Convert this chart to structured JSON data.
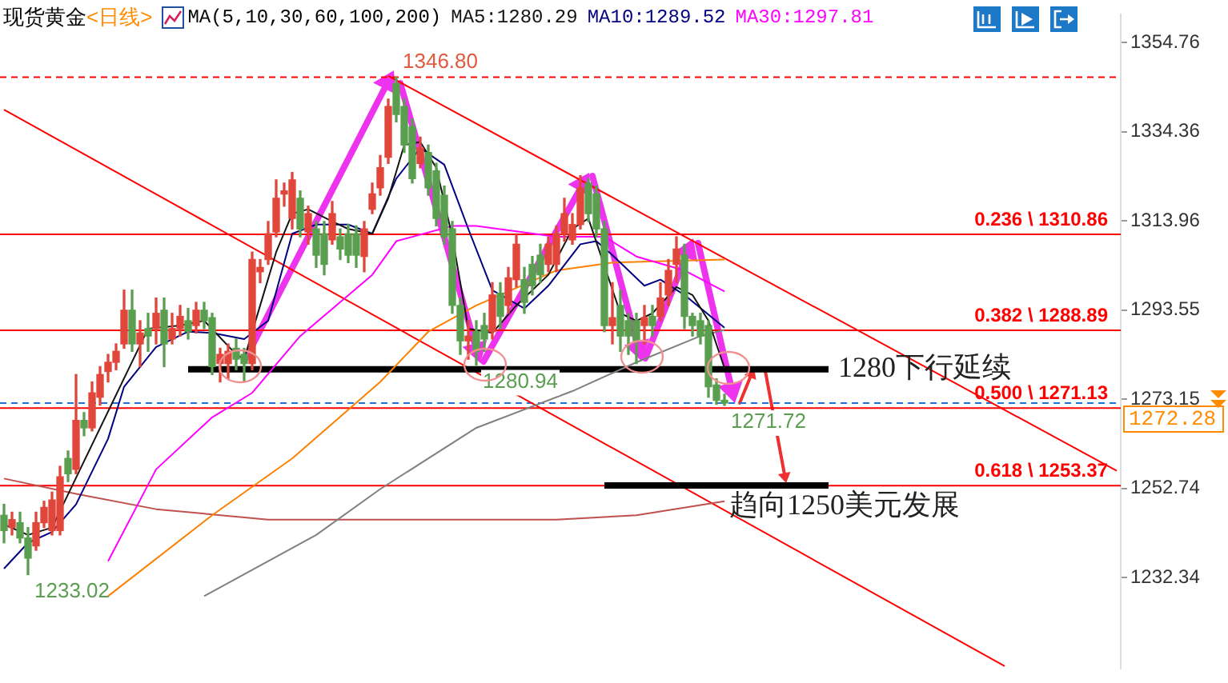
{
  "chart_data": {
    "type": "candlestick",
    "title": "现货黄金",
    "subtitle": "<日线>",
    "legend": "top",
    "tick_labels": "y",
    "annotations": [
      "MA(5,10,30,60,100,200)",
      {
        "text": "1346.80",
        "y": 1346.8
      },
      {
        "text": "1280.94",
        "y": 1280.94
      },
      "1233.02",
      {
        "text": "1271.72",
        "y": 1271.72
      }
    ],
    "categories": [
      null,
      null,
      null,
      null,
      null,
      null,
      null,
      null,
      null,
      null,
      null,
      null,
      null,
      null,
      null,
      null,
      null,
      null,
      null,
      null,
      null,
      null,
      null,
      null,
      null,
      null,
      null,
      null,
      null,
      null,
      null,
      null,
      null,
      null,
      null,
      null,
      null,
      null,
      null,
      null,
      null,
      null,
      null,
      null,
      null,
      null,
      null,
      null,
      null,
      null,
      null,
      null,
      null,
      null,
      null,
      null,
      null,
      null,
      null,
      null,
      null,
      null,
      null,
      null,
      null,
      null,
      null,
      null,
      null,
      null,
      null,
      null,
      null,
      null,
      null,
      null,
      null,
      null,
      null,
      null,
      null,
      null,
      null,
      null,
      null,
      null,
      null,
      null,
      null,
      null,
      null,
      null,
      null,
      null,
      null,
      null,
      null,
      null,
      null,
      null,
      null,
      null,
      null,
      null,
      null,
      null,
      null,
      null,
      null,
      null,
      null,
      null,
      null,
      null,
      null,
      null,
      null,
      null,
      null,
      null,
      null,
      null,
      null,
      null,
      null,
      null,
      null,
      null,
      null,
      null,
      null,
      null,
      null,
      null,
      null,
      null,
      null,
      null,
      null,
      null
    ],
    "ohlc": [
      [
        1246.6,
        1249.1,
        1240.3,
        1243.1
      ],
      [
        1243.8,
        1247.3,
        1242.1,
        1245.6
      ],
      [
        1244.9,
        1247.3,
        1240.3,
        1241.4
      ],
      [
        1241.4,
        1243.8,
        1233.02,
        1236.8
      ],
      [
        1239.6,
        1247.3,
        1238.6,
        1244.9
      ],
      [
        1244.9,
        1249.8,
        1243.8,
        1248.4
      ],
      [
        1243.1,
        1251.9,
        1242.1,
        1250.1
      ],
      [
        1243.1,
        1257.8,
        1242.1,
        1255.4
      ],
      [
        1259.6,
        1261.3,
        1254.3,
        1256.1
      ],
      [
        1257.1,
        1278.8,
        1256.1,
        1268.3
      ],
      [
        1268.3,
        1270.1,
        1264.8,
        1266.6
      ],
      [
        1266.6,
        1277.1,
        1265.9,
        1274.6
      ],
      [
        1273.6,
        1280.6,
        1271.8,
        1278.8
      ],
      [
        1279.5,
        1283.4,
        1277.1,
        1281.6
      ],
      [
        1281.6,
        1285.8,
        1279.9,
        1284.1
      ],
      [
        1285.8,
        1298.1,
        1284.8,
        1293.5
      ],
      [
        1293.5,
        1298.1,
        1284.1,
        1285.8
      ],
      [
        1285.8,
        1291.1,
        1280.6,
        1288.3
      ],
      [
        1289.3,
        1292.8,
        1284.1,
        1287.6
      ],
      [
        1289.3,
        1296.3,
        1285.8,
        1292.8
      ],
      [
        1293.5,
        1296.3,
        1280.6,
        1285.8
      ],
      [
        1286.9,
        1292.8,
        1285.8,
        1289.3
      ],
      [
        1289.3,
        1294.6,
        1287.6,
        1292.1
      ],
      [
        1291.1,
        1293.9,
        1286.9,
        1288.6
      ],
      [
        1290.0,
        1295.3,
        1288.3,
        1293.5
      ],
      [
        1293.5,
        1295.3,
        1289.3,
        1291.1
      ],
      [
        1291.8,
        1292.8,
        1278.8,
        1280.6
      ],
      [
        1281.3,
        1284.8,
        1277.1,
        1283.4
      ],
      [
        1281.3,
        1285.8,
        1277.8,
        1284.1
      ],
      [
        1284.8,
        1286.9,
        1279.9,
        1282.3
      ],
      [
        1283.4,
        1284.8,
        1277.1,
        1281.3
      ],
      [
        1281.3,
        1306.8,
        1279.9,
        1305.1
      ],
      [
        1302.3,
        1305.1,
        1299.8,
        1303.3
      ],
      [
        1305.1,
        1313.8,
        1304.0,
        1311.0
      ],
      [
        1311.4,
        1323.3,
        1310.3,
        1319.1
      ],
      [
        1320.1,
        1322.6,
        1317.3,
        1320.8
      ],
      [
        1314.5,
        1325.0,
        1312.1,
        1323.3
      ],
      [
        1319.1,
        1320.8,
        1310.3,
        1312.1
      ],
      [
        1311.4,
        1317.3,
        1308.6,
        1315.6
      ],
      [
        1312.1,
        1313.8,
        1303.3,
        1306.1
      ],
      [
        1311.0,
        1313.8,
        1301.6,
        1304.0
      ],
      [
        1309.6,
        1318.4,
        1308.6,
        1315.6
      ],
      [
        1310.3,
        1312.1,
        1305.1,
        1307.5
      ],
      [
        1311.0,
        1313.1,
        1304.4,
        1306.1
      ],
      [
        1311.0,
        1312.8,
        1303.3,
        1306.1
      ],
      [
        1305.8,
        1313.8,
        1302.3,
        1312.1
      ],
      [
        1316.6,
        1322.6,
        1315.6,
        1320.1
      ],
      [
        1321.5,
        1328.9,
        1319.8,
        1326.1
      ],
      [
        1328.5,
        1341.8,
        1327.1,
        1340.1
      ],
      [
        1345.3,
        1346.8,
        1336.6,
        1338.3
      ],
      [
        1340.1,
        1341.8,
        1329.6,
        1331.3
      ],
      [
        1335.5,
        1337.3,
        1322.6,
        1323.6
      ],
      [
        1327.1,
        1333.1,
        1326.1,
        1330.6
      ],
      [
        1329.6,
        1331.3,
        1319.8,
        1321.5
      ],
      [
        1325.4,
        1327.1,
        1312.8,
        1314.5
      ],
      [
        1319.8,
        1321.9,
        1308.6,
        1310.3
      ],
      [
        1312.1,
        1313.8,
        1292.8,
        1294.6
      ],
      [
        1294.6,
        1296.3,
        1283.4,
        1286.5
      ],
      [
        1286.5,
        1291.1,
        1282.3,
        1287.6
      ],
      [
        1288.6,
        1291.1,
        1280.94,
        1284.1
      ],
      [
        1290.0,
        1292.8,
        1284.1,
        1286.9
      ],
      [
        1288.6,
        1299.8,
        1286.9,
        1297.0
      ],
      [
        1297.4,
        1299.8,
        1289.3,
        1292.1
      ],
      [
        1294.6,
        1303.3,
        1292.8,
        1300.9
      ],
      [
        1300.5,
        1311.0,
        1298.8,
        1308.6
      ],
      [
        1300.5,
        1303.3,
        1292.8,
        1295.3
      ],
      [
        1304.0,
        1305.8,
        1297.0,
        1299.1
      ],
      [
        1306.1,
        1308.6,
        1299.8,
        1301.6
      ],
      [
        1304.0,
        1310.3,
        1302.3,
        1308.6
      ],
      [
        1304.0,
        1312.8,
        1302.3,
        1311.0
      ],
      [
        1311.0,
        1319.1,
        1309.3,
        1315.6
      ],
      [
        1309.6,
        1315.6,
        1308.6,
        1313.1
      ],
      [
        1313.1,
        1324.3,
        1312.1,
        1321.5
      ],
      [
        1322.6,
        1323.6,
        1313.8,
        1315.6
      ],
      [
        1320.1,
        1321.9,
        1310.3,
        1312.1
      ],
      [
        1312.1,
        1313.8,
        1288.6,
        1290.0
      ],
      [
        1290.0,
        1299.8,
        1285.8,
        1291.8
      ],
      [
        1294.6,
        1298.1,
        1284.1,
        1287.6
      ],
      [
        1291.1,
        1292.8,
        1283.4,
        1287.6
      ],
      [
        1291.1,
        1292.8,
        1281.3,
        1286.5
      ],
      [
        1290.0,
        1294.6,
        1285.8,
        1291.8
      ],
      [
        1292.1,
        1294.6,
        1287.6,
        1290.0
      ],
      [
        1292.1,
        1299.8,
        1291.1,
        1296.3
      ],
      [
        1297.0,
        1305.1,
        1294.6,
        1302.6
      ],
      [
        1304.0,
        1310.3,
        1299.8,
        1307.5
      ],
      [
        1306.1,
        1308.6,
        1289.3,
        1292.1
      ],
      [
        1292.1,
        1292.8,
        1287.6,
        1290.0
      ],
      [
        1291.1,
        1292.8,
        1285.8,
        1287.6
      ],
      [
        1290.0,
        1291.1,
        1273.6,
        1276.0
      ],
      [
        1276.4,
        1277.8,
        1272.0,
        1272.9
      ],
      [
        1272.9,
        1274.3,
        1271.72,
        1272.28
      ],
      null,
      null,
      null,
      null,
      null,
      null,
      null,
      null,
      null,
      null,
      null,
      null,
      null,
      null,
      null,
      null,
      null,
      null,
      null,
      null,
      null,
      null,
      null,
      null,
      null,
      null,
      null,
      null,
      null,
      null,
      null,
      null,
      null,
      null,
      null,
      null,
      null,
      null,
      null,
      null,
      null,
      null,
      null,
      null,
      null,
      null,
      null,
      null,
      null
    ],
    "series": [
      {
        "type": "line",
        "name": "MA5:1280.29",
        "color": "#141414",
        "values": [
          1244.5,
          null,
          null,
          1242.1,
          null,
          null,
          1243.8,
          null,
          null,
          null,
          null,
          null,
          null,
          null,
          null,
          null,
          null,
          null,
          1289.3,
          null,
          null,
          null,
          1290.0,
          null,
          null,
          1291.1,
          null,
          null,
          null,
          1283.4,
          1282.3,
          null,
          1294.6,
          null,
          1306.8,
          null,
          1315.6,
          null,
          1316.6,
          null,
          null,
          1313.8,
          null,
          1312.1,
          null,
          null,
          1311.0,
          null,
          1319.1,
          null,
          1331.3,
          null,
          1332.0,
          null,
          1326.1,
          null,
          1310.3,
          null,
          1289.3,
          null,
          null,
          1288.3,
          null,
          null,
          1294.6,
          null,
          null,
          null,
          1301.6,
          null,
          null,
          1312.1,
          null,
          1314.5,
          null,
          null,
          null,
          1292.8,
          null,
          1291.1,
          null,
          1292.8,
          null,
          null,
          1298.8,
          null,
          1297.0,
          null,
          1291.1,
          null,
          1280.29,
          null,
          null,
          null,
          null,
          null,
          null,
          null,
          null,
          null,
          null,
          null,
          null,
          null,
          null,
          null,
          null,
          null,
          null,
          null,
          null,
          null,
          null,
          null,
          null,
          null,
          null,
          null,
          null,
          null,
          null,
          null,
          null,
          null,
          null,
          null,
          null,
          null,
          null,
          null,
          null,
          null,
          null,
          null,
          null,
          null,
          null,
          null,
          null,
          null
        ]
      },
      {
        "type": "line",
        "name": "MA10:1289.52",
        "color": "#000080",
        "values": [
          1234.4,
          null,
          null,
          1240.3,
          null,
          null,
          1242.8,
          null,
          null,
          1249.1,
          null,
          null,
          null,
          1264.1,
          null,
          1276.0,
          null,
          null,
          null,
          1285.1,
          null,
          null,
          null,
          1288.6,
          null,
          null,
          1288.3,
          null,
          null,
          null,
          1286.9,
          null,
          null,
          1291.1,
          null,
          null,
          1311.0,
          null,
          null,
          1313.1,
          null,
          null,
          null,
          1313.1,
          null,
          null,
          1311.0,
          null,
          null,
          1323.6,
          null,
          null,
          1330.6,
          null,
          null,
          1326.8,
          null,
          null,
          1312.1,
          null,
          null,
          1298.1,
          null,
          null,
          null,
          1293.9,
          null,
          null,
          1299.1,
          null,
          null,
          null,
          1308.6,
          null,
          1309.3,
          null,
          1306.1,
          null,
          null,
          null,
          1299.1,
          null,
          1300.5,
          null,
          null,
          1297.0,
          null,
          null,
          null,
          null,
          1289.52,
          null,
          null,
          null,
          null,
          null,
          null,
          null,
          null,
          null,
          null,
          null,
          null,
          null,
          null,
          null,
          null,
          null,
          null,
          null,
          null,
          null,
          null,
          null,
          null,
          null,
          null,
          null,
          null,
          null,
          null,
          null,
          null,
          null,
          null,
          null,
          null,
          null,
          null,
          null,
          null,
          null,
          null,
          null,
          null,
          null,
          null,
          null,
          null,
          null
        ]
      },
      {
        "type": "line",
        "name": "MA30:1297.81",
        "color": "#ff00ff",
        "values": [
          null,
          null,
          null,
          null,
          null,
          null,
          null,
          null,
          null,
          null,
          null,
          null,
          null,
          1236.1,
          null,
          null,
          null,
          null,
          null,
          1257.1,
          null,
          null,
          null,
          null,
          null,
          null,
          1269.0,
          null,
          null,
          null,
          null,
          1274.6,
          null,
          null,
          null,
          null,
          null,
          1287.6,
          null,
          null,
          null,
          null,
          null,
          null,
          null,
          null,
          1301.6,
          null,
          null,
          1309.3,
          null,
          null,
          null,
          null,
          null,
          null,
          1312.8,
          null,
          null,
          1312.8,
          null,
          null,
          null,
          null,
          null,
          null,
          null,
          null,
          null,
          1310.3,
          null,
          null,
          null,
          null,
          null,
          1310.3,
          null,
          null,
          null,
          1305.8,
          null,
          null,
          null,
          null,
          null,
          1302.6,
          null,
          null,
          null,
          null,
          1297.81,
          null,
          null,
          null,
          null,
          null,
          null,
          null,
          null,
          null,
          null,
          null,
          null,
          null,
          null,
          null,
          null,
          null,
          null,
          null,
          null,
          null,
          null,
          null,
          null,
          null,
          null,
          null,
          null,
          null,
          null,
          null,
          null,
          null,
          null,
          null,
          null,
          null,
          null,
          null,
          null,
          null,
          null,
          null,
          null,
          null,
          null,
          null,
          null,
          null
        ]
      },
      {
        "type": "line",
        "color": "#ff8000",
        "values": [
          null,
          null,
          null,
          null,
          null,
          null,
          null,
          null,
          null,
          null,
          null,
          null,
          null,
          1228.1,
          null,
          null,
          null,
          null,
          null,
          null,
          null,
          null,
          null,
          null,
          null,
          null,
          1246.6,
          null,
          null,
          null,
          null,
          null,
          null,
          null,
          null,
          null,
          1259.6,
          null,
          null,
          null,
          null,
          null,
          null,
          null,
          null,
          null,
          null,
          1277.1,
          null,
          null,
          null,
          null,
          null,
          1288.6,
          null,
          null,
          null,
          null,
          null,
          1294.6,
          null,
          null,
          null,
          null,
          null,
          null,
          null,
          null,
          null,
          1302.6,
          null,
          null,
          null,
          null,
          null,
          null,
          1304.4,
          null,
          null,
          null,
          null,
          null,
          null,
          null,
          null,
          null,
          null,
          null,
          null,
          null,
          1305.1,
          null,
          null,
          null,
          null,
          null,
          null,
          null,
          null,
          null,
          null,
          null,
          null,
          null,
          null,
          null,
          null,
          null,
          null,
          null,
          null,
          null,
          null,
          null,
          null,
          null,
          null,
          null,
          null,
          null,
          null,
          null,
          null,
          null,
          null,
          null,
          null,
          null,
          null,
          null,
          null,
          null,
          null,
          null,
          null,
          null,
          null,
          null,
          null,
          null
        ]
      },
      {
        "type": "line",
        "color": "#808080",
        "values": [
          null,
          null,
          null,
          null,
          null,
          null,
          null,
          null,
          null,
          null,
          null,
          null,
          null,
          null,
          null,
          null,
          null,
          null,
          null,
          null,
          null,
          null,
          null,
          null,
          null,
          1228.1,
          null,
          null,
          null,
          null,
          null,
          null,
          null,
          null,
          null,
          null,
          null,
          null,
          null,
          1242.1,
          null,
          null,
          null,
          null,
          null,
          null,
          null,
          1252.6,
          null,
          null,
          null,
          null,
          null,
          null,
          null,
          null,
          null,
          null,
          null,
          1266.6,
          null,
          null,
          null,
          null,
          null,
          null,
          null,
          null,
          null,
          null,
          null,
          1275.0,
          null,
          null,
          null,
          null,
          null,
          null,
          null,
          1281.6,
          null,
          null,
          null,
          null,
          null,
          null,
          null,
          1287.6,
          null,
          null,
          1289.0,
          null,
          null,
          null,
          null,
          null,
          null,
          null,
          null,
          null,
          null,
          null,
          null,
          null,
          null,
          null,
          null,
          null,
          null,
          null,
          null,
          null,
          null,
          null,
          null,
          null,
          null,
          null,
          null,
          null,
          null,
          null,
          null,
          null,
          null,
          null,
          null,
          null,
          null,
          null,
          null,
          null,
          null,
          null,
          null,
          null,
          null,
          null,
          null,
          null
        ]
      },
      {
        "type": "line",
        "color": "#c0504d",
        "values": [
          1255.0,
          null,
          null,
          null,
          null,
          null,
          null,
          null,
          null,
          1251.5,
          null,
          null,
          null,
          null,
          null,
          null,
          null,
          null,
          null,
          1248.0,
          null,
          null,
          null,
          null,
          null,
          null,
          null,
          null,
          null,
          null,
          null,
          null,
          null,
          1245.6,
          null,
          null,
          null,
          null,
          null,
          null,
          null,
          null,
          null,
          null,
          null,
          null,
          null,
          1245.6,
          null,
          null,
          null,
          null,
          null,
          null,
          null,
          null,
          null,
          null,
          null,
          null,
          null,
          null,
          null,
          null,
          null,
          null,
          null,
          null,
          null,
          1245.6,
          null,
          null,
          null,
          null,
          null,
          null,
          null,
          null,
          null,
          1246.6,
          null,
          null,
          null,
          null,
          null,
          null,
          null,
          null,
          null,
          null,
          1249.8,
          null,
          null,
          null,
          null,
          null,
          null,
          null,
          null,
          null,
          null,
          null,
          null,
          null,
          null,
          null,
          null,
          null,
          null,
          null,
          null,
          null,
          null,
          null,
          null,
          null,
          null,
          null,
          null,
          null,
          null,
          null,
          null,
          null,
          null,
          null,
          null,
          null,
          null,
          null,
          null,
          null,
          null,
          null,
          null,
          null,
          null,
          null,
          null,
          null
        ]
      },
      {
        "type": "line",
        "name": "1280下行延续",
        "color": "#000000",
        "values": [
          null,
          null,
          null,
          null,
          null,
          null,
          null,
          null,
          null,
          null,
          null,
          null,
          null,
          null,
          null,
          null,
          null,
          null,
          null,
          null,
          null,
          null,
          null,
          1280,
          null,
          null,
          null,
          null,
          null,
          null,
          null,
          null,
          null,
          null,
          null,
          null,
          null,
          null,
          null,
          null,
          null,
          null,
          null,
          null,
          null,
          null,
          null,
          null,
          null,
          null,
          null,
          null,
          null,
          null,
          null,
          null,
          null,
          null,
          null,
          null,
          null,
          null,
          null,
          null,
          null,
          null,
          null,
          null,
          null,
          null,
          null,
          null,
          null,
          null,
          null,
          null,
          null,
          null,
          null,
          null,
          null,
          null,
          null,
          null,
          null,
          null,
          null,
          null,
          null,
          null,
          null,
          null,
          null,
          null,
          null,
          null,
          null,
          null,
          null,
          null,
          null,
          null,
          null,
          1280,
          null,
          null,
          null,
          null,
          null,
          null,
          null,
          null,
          null,
          null,
          null,
          null,
          null,
          null,
          null,
          null,
          null,
          null,
          null,
          null,
          null,
          null,
          null,
          null,
          null,
          null,
          null,
          null,
          null,
          null,
          null,
          null,
          null,
          null,
          null,
          null
        ]
      },
      {
        "type": "line",
        "name": "趋向1250美元发展",
        "color": "#000000",
        "values": [
          null,
          null,
          null,
          null,
          null,
          null,
          null,
          null,
          null,
          null,
          null,
          null,
          null,
          null,
          null,
          null,
          null,
          null,
          null,
          null,
          null,
          null,
          null,
          null,
          null,
          null,
          null,
          null,
          null,
          null,
          null,
          null,
          null,
          null,
          null,
          null,
          null,
          null,
          null,
          null,
          null,
          null,
          null,
          null,
          null,
          null,
          null,
          null,
          null,
          null,
          null,
          null,
          null,
          null,
          null,
          null,
          null,
          null,
          null,
          null,
          null,
          null,
          null,
          null,
          null,
          null,
          null,
          null,
          null,
          null,
          null,
          null,
          null,
          null,
          null,
          1253.4,
          null,
          null,
          null,
          null,
          null,
          null,
          null,
          null,
          null,
          null,
          null,
          null,
          null,
          null,
          null,
          null,
          null,
          null,
          null,
          null,
          null,
          null,
          null,
          null,
          null,
          null,
          null,
          1253.4,
          null,
          null,
          null,
          null,
          null,
          null,
          null,
          null,
          null,
          null,
          null,
          null,
          null,
          null,
          null,
          null,
          null,
          null,
          null,
          null,
          null,
          null,
          null,
          null,
          null,
          null,
          null,
          null,
          null,
          null,
          null,
          null,
          null,
          null,
          null,
          null
        ]
      },
      {
        "type": "line",
        "color": "#ff0000",
        "values": [
          1339.4,
          null,
          null,
          null,
          null,
          null,
          null,
          null,
          null,
          null,
          null,
          null,
          null,
          null,
          null,
          null,
          null,
          null,
          null,
          null,
          null,
          null,
          null,
          null,
          null,
          null,
          null,
          null,
          null,
          null,
          null,
          null,
          null,
          null,
          null,
          null,
          null,
          null,
          null,
          null,
          null,
          null,
          null,
          null,
          null,
          null,
          null,
          null,
          null,
          null,
          null,
          null,
          null,
          null,
          null,
          null,
          null,
          null,
          null,
          null,
          null,
          null,
          null,
          null,
          null,
          null,
          null,
          null,
          null,
          null,
          null,
          null,
          null,
          null,
          null,
          null,
          null,
          null,
          null,
          null,
          null,
          null,
          null,
          null,
          null,
          null,
          null,
          null,
          null,
          null,
          null,
          null,
          null,
          null,
          null,
          null,
          null,
          null,
          null,
          null,
          null,
          null,
          null,
          null,
          null,
          null,
          null,
          null,
          null,
          null,
          null,
          null,
          null,
          null,
          null,
          null,
          null,
          null,
          null,
          null,
          null,
          null,
          null,
          null,
          null,
          1212.1,
          null,
          null,
          null,
          null,
          null,
          null,
          null,
          null,
          null,
          null,
          null,
          null,
          null,
          null
        ]
      },
      {
        "type": "line",
        "color": "#ff0000",
        "values": [
          null,
          null,
          null,
          null,
          null,
          null,
          null,
          null,
          null,
          null,
          null,
          null,
          null,
          null,
          null,
          null,
          null,
          null,
          null,
          null,
          null,
          null,
          null,
          null,
          null,
          null,
          null,
          null,
          null,
          null,
          null,
          null,
          null,
          null,
          null,
          null,
          null,
          null,
          null,
          null,
          null,
          null,
          null,
          null,
          null,
          null,
          null,
          null,
          1347.1,
          null,
          null,
          null,
          null,
          null,
          null,
          null,
          null,
          null,
          null,
          null,
          null,
          null,
          null,
          null,
          null,
          null,
          null,
          null,
          null,
          null,
          null,
          null,
          null,
          null,
          null,
          null,
          null,
          null,
          null,
          null,
          null,
          null,
          null,
          null,
          null,
          null,
          null,
          null,
          null,
          null,
          null,
          null,
          null,
          null,
          null,
          null,
          null,
          null,
          null,
          null,
          null,
          null,
          null,
          null,
          null,
          null,
          null,
          null,
          null,
          null,
          null,
          null,
          null,
          null,
          null,
          null,
          null,
          null,
          null,
          null,
          null,
          null,
          null,
          null,
          null,
          null,
          null,
          null,
          null,
          null,
          null,
          null,
          null,
          null,
          null,
          null,
          null,
          null,
          null,
          1256.8
        ]
      }
    ],
    "ref_lines": [
      {
        "axis": "y",
        "value": 1346.8,
        "color": "#ff0000",
        "line_style": "dashed"
      },
      {
        "axis": "y",
        "value": 1310.86,
        "label": "0.236 \\ 1310.86",
        "color": "#ff0000"
      },
      {
        "axis": "y",
        "value": 1288.89,
        "label": "0.382 \\ 1288.89",
        "color": "#ff0000"
      },
      {
        "axis": "y",
        "value": 1271.13,
        "label": "0.500 \\ 1271.13",
        "color": "#ff0000"
      },
      {
        "axis": "y",
        "value": 1253.37,
        "label": "0.618 \\ 1253.37",
        "color": "#ff0000"
      },
      {
        "axis": "y",
        "value": 1272.28,
        "label": "1272.28",
        "color": "#1e6fe0",
        "line_style": "dashed"
      }
    ],
    "ylim": [
      1211.6,
      1361.1
    ],
    "yticks": [
      1354.76,
      1334.36,
      1313.96,
      1293.55,
      1273.15,
      1252.74,
      1232.34
    ]
  }
}
